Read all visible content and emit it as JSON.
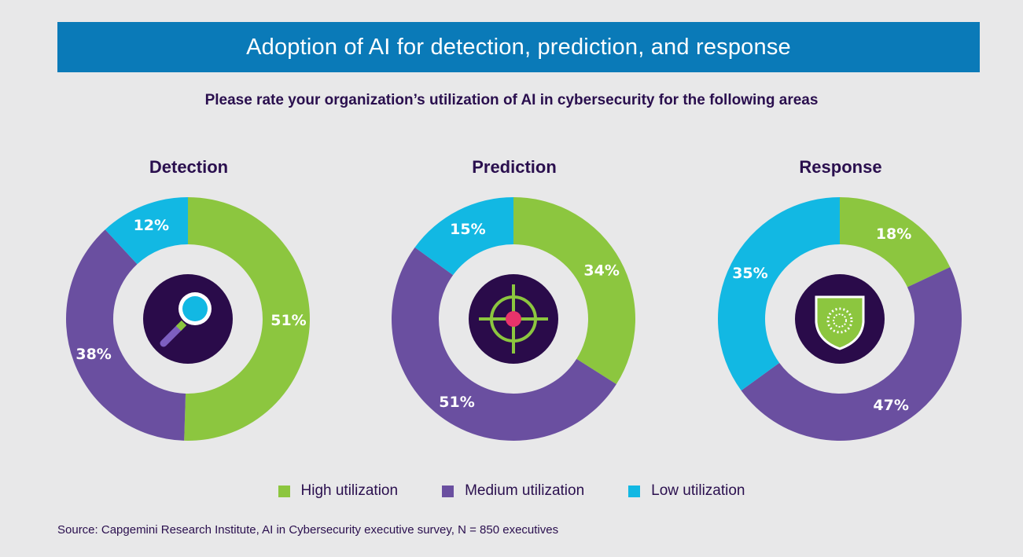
{
  "banner": {
    "title": "Adoption of AI for detection, prediction, and response"
  },
  "subtitle": "Please rate your organization’s utilization of AI in cybersecurity for the following areas",
  "colors": {
    "high": "#8cc63f",
    "medium": "#6a4fa0",
    "low": "#12b8e3",
    "banner": "#0a7ab8",
    "dark": "#2a0f4e"
  },
  "legend": [
    {
      "key": "high",
      "label": "High utilization"
    },
    {
      "key": "medium",
      "label": "Medium utilization"
    },
    {
      "key": "low",
      "label": "Low utilization"
    }
  ],
  "source": "Source: Capgemini Research Institute, AI in Cybersecurity executive survey, N = 850 executives",
  "chart_data": [
    {
      "type": "pie",
      "title": "Detection",
      "icon": "magnifier-icon",
      "slices": [
        {
          "key": "high",
          "name": "High utilization",
          "value": 51,
          "label": "51%"
        },
        {
          "key": "medium",
          "name": "Medium utilization",
          "value": 38,
          "label": "38%"
        },
        {
          "key": "low",
          "name": "Low utilization",
          "value": 12,
          "label": "12%"
        }
      ]
    },
    {
      "type": "pie",
      "title": "Prediction",
      "icon": "target-icon",
      "slices": [
        {
          "key": "high",
          "name": "High utilization",
          "value": 34,
          "label": "34%"
        },
        {
          "key": "medium",
          "name": "Medium utilization",
          "value": 51,
          "label": "51%"
        },
        {
          "key": "low",
          "name": "Low utilization",
          "value": 15,
          "label": "15%"
        }
      ]
    },
    {
      "type": "pie",
      "title": "Response",
      "icon": "shield-icon",
      "slices": [
        {
          "key": "high",
          "name": "High utilization",
          "value": 18,
          "label": "18%"
        },
        {
          "key": "medium",
          "name": "Medium utilization",
          "value": 47,
          "label": "47%"
        },
        {
          "key": "low",
          "name": "Low utilization",
          "value": 35,
          "label": "35%"
        }
      ]
    }
  ]
}
